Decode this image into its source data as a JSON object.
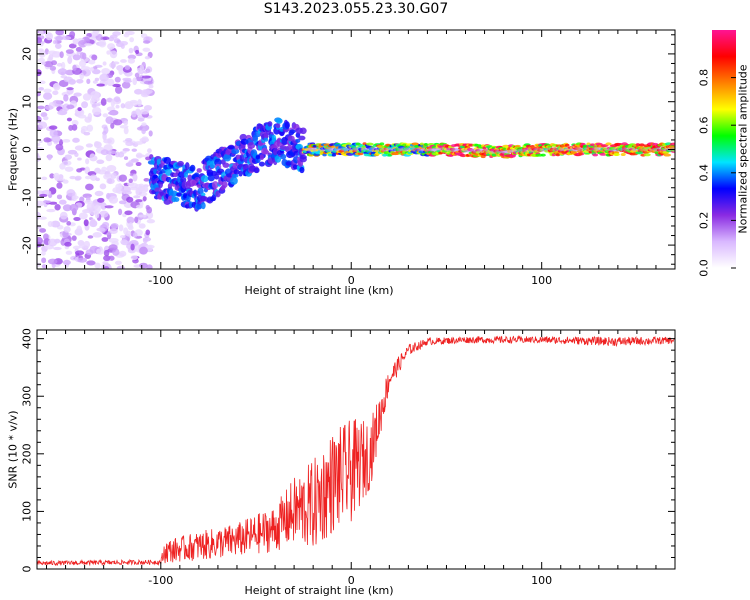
{
  "title": "S143.2023.055.23.30.G07",
  "chart_data": [
    {
      "type": "heatmap",
      "xlabel": "Height of straight line (km)",
      "ylabel": "Frequency (Hz)",
      "xlim": [
        -165,
        170
      ],
      "ylim": [
        -25,
        25
      ],
      "xticks": [
        -100,
        0,
        100
      ],
      "yticks": [
        -20,
        -10,
        0,
        10,
        20
      ],
      "colorbar": {
        "label": "Normalized spectral amplitude",
        "range": [
          0,
          1
        ],
        "ticks": [
          "0.0",
          "0.2",
          "0.4",
          "0.6",
          "0.8"
        ],
        "tick_values": [
          0.0,
          0.2,
          0.4,
          0.6,
          0.8
        ],
        "colors": [
          "#ffffff",
          "#d9b8ff",
          "#8a2be2",
          "#0000ff",
          "#00e5ff",
          "#00ff00",
          "#ffff00",
          "#ff8000",
          "#ff0000",
          "#ff1493"
        ]
      },
      "features": {
        "noise_region_x": [
          -165,
          -105
        ],
        "ridge_x": [
          -105,
          170
        ],
        "ridge_freq_at": [
          [
            -105,
            -6
          ],
          [
            -80,
            -8
          ],
          [
            -60,
            -2
          ],
          [
            -40,
            2
          ],
          [
            -25,
            0
          ],
          [
            0,
            0
          ],
          [
            50,
            0
          ],
          [
            80,
            -0.5
          ],
          [
            100,
            0
          ],
          [
            170,
            0
          ]
        ]
      }
    },
    {
      "type": "line",
      "xlabel": "Height of straight line (km)",
      "ylabel": "SNR (10 * v/v)",
      "xlim": [
        -165,
        170
      ],
      "ylim": [
        0,
        415
      ],
      "xticks": [
        -100,
        0,
        100
      ],
      "yticks": [
        0,
        100,
        200,
        300,
        400
      ],
      "color": "#ee2222",
      "envelope": {
        "x": [
          -165,
          -100,
          -98,
          -80,
          -60,
          -40,
          -30,
          -20,
          -10,
          0,
          10,
          20,
          30,
          40,
          60,
          100,
          140,
          170
        ],
        "base": [
          10,
          12,
          30,
          40,
          50,
          70,
          100,
          110,
          150,
          170,
          200,
          330,
          380,
          395,
          398,
          398,
          395,
          397
        ],
        "amplitude": [
          4,
          4,
          20,
          25,
          30,
          40,
          60,
          80,
          90,
          90,
          60,
          20,
          10,
          6,
          6,
          6,
          8,
          6
        ]
      }
    }
  ]
}
